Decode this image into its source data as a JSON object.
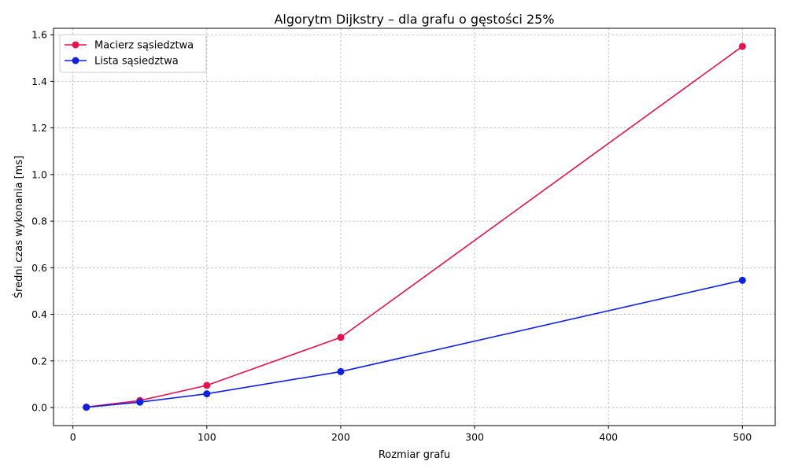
{
  "chart_data": {
    "type": "line",
    "title": "Algorytm Dijkstry – dla grafu o gęstości 25%",
    "xlabel": "Rozmiar grafu",
    "ylabel": "Średni czas wykonania [ms]",
    "xlim": [
      -14.5,
      524.5
    ],
    "ylim": [
      -0.0775,
      1.6275
    ],
    "xticks": [
      0,
      100,
      200,
      300,
      400,
      500
    ],
    "yticks": [
      0.0,
      0.2,
      0.4,
      0.6,
      0.8,
      1.0,
      1.2,
      1.4,
      1.6
    ],
    "x": [
      10,
      50,
      100,
      200,
      500
    ],
    "series": [
      {
        "name": "Macierz sąsiedztwa",
        "color": "#e8104f",
        "values": [
          0.002,
          0.03,
          0.095,
          0.301,
          1.55
        ]
      },
      {
        "name": "Lista sąsiedztwa",
        "color": "#1020e0",
        "values": [
          0.001,
          0.023,
          0.059,
          0.154,
          0.546
        ]
      }
    ],
    "grid": true,
    "legend_position": "top-left"
  }
}
